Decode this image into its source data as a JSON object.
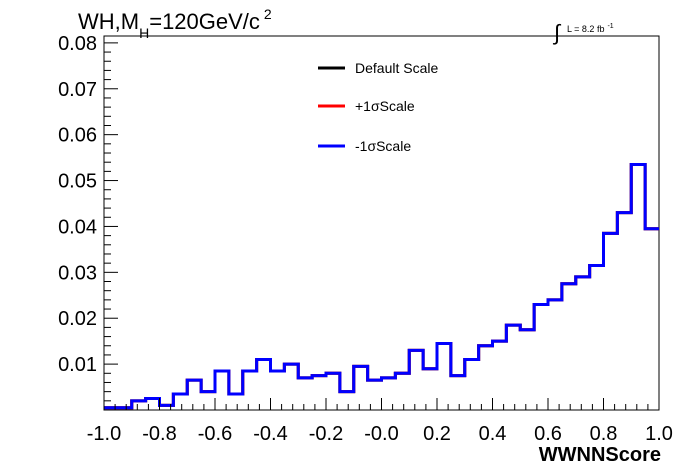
{
  "chart_data": {
    "type": "line",
    "title_parts": {
      "main": "WH,M",
      "sub": "H",
      "rest": "=120GeV/c",
      "sup": "2"
    },
    "lumi_label": {
      "integral": "∫",
      "text": "L = 8.2 fb",
      "sup": "-1"
    },
    "xlabel": "WWNNScore",
    "ylabel": "",
    "xlim": [
      -1.0,
      1.0
    ],
    "ylim": [
      0.0,
      0.0815
    ],
    "x_tick_labels": [
      "-1.0",
      "-0.8",
      "-0.6",
      "-0.4",
      "-0.2",
      "-0.0",
      "0.2",
      "0.4",
      "0.6",
      "0.8",
      "1.0"
    ],
    "x_tick_values": [
      -1.0,
      -0.8,
      -0.6,
      -0.4,
      -0.2,
      0.0,
      0.2,
      0.4,
      0.6,
      0.8,
      1.0
    ],
    "y_tick_labels": [
      "0.01",
      "0.02",
      "0.03",
      "0.04",
      "0.05",
      "0.06",
      "0.07",
      "0.08"
    ],
    "y_tick_values": [
      0.01,
      0.02,
      0.03,
      0.04,
      0.05,
      0.06,
      0.07,
      0.08
    ],
    "bin_edges": [
      -1.0,
      -0.95,
      -0.9,
      -0.85,
      -0.8,
      -0.75,
      -0.7,
      -0.65,
      -0.6,
      -0.55,
      -0.5,
      -0.45,
      -0.4,
      -0.35,
      -0.3,
      -0.25,
      -0.2,
      -0.15,
      -0.1,
      -0.05,
      0.0,
      0.05,
      0.1,
      0.15,
      0.2,
      0.25,
      0.3,
      0.35,
      0.4,
      0.45,
      0.5,
      0.55,
      0.6,
      0.65,
      0.7,
      0.75,
      0.8,
      0.85,
      0.9,
      0.95,
      1.0
    ],
    "series": [
      {
        "name": "Default Scale",
        "color": "#000000",
        "values": [
          0.0005,
          0.0005,
          0.002,
          0.0025,
          0.001,
          0.0035,
          0.0065,
          0.004,
          0.0085,
          0.0035,
          0.0085,
          0.011,
          0.0085,
          0.01,
          0.007,
          0.0075,
          0.008,
          0.004,
          0.0095,
          0.0065,
          0.007,
          0.008,
          0.013,
          0.009,
          0.0145,
          0.0075,
          0.011,
          0.014,
          0.015,
          0.0185,
          0.0175,
          0.023,
          0.024,
          0.0275,
          0.029,
          0.0315,
          0.0385,
          0.043,
          0.0535,
          0.0395
        ]
      },
      {
        "name": "+1σScale",
        "color": "#ff0000",
        "values": [
          0.0005,
          0.0005,
          0.002,
          0.0025,
          0.001,
          0.0035,
          0.0065,
          0.004,
          0.0085,
          0.0035,
          0.0085,
          0.011,
          0.0085,
          0.01,
          0.007,
          0.0075,
          0.008,
          0.004,
          0.0095,
          0.0065,
          0.007,
          0.008,
          0.013,
          0.009,
          0.0145,
          0.0075,
          0.011,
          0.014,
          0.015,
          0.0185,
          0.0175,
          0.023,
          0.024,
          0.0275,
          0.029,
          0.0315,
          0.0385,
          0.043,
          0.0535,
          0.0395
        ]
      },
      {
        "name": "-1σScale",
        "color": "#0000ff",
        "values": [
          0.0005,
          0.0005,
          0.002,
          0.0025,
          0.001,
          0.0035,
          0.0065,
          0.004,
          0.0085,
          0.0035,
          0.0085,
          0.011,
          0.0085,
          0.01,
          0.007,
          0.0075,
          0.008,
          0.004,
          0.0095,
          0.0065,
          0.007,
          0.008,
          0.013,
          0.009,
          0.0145,
          0.0075,
          0.011,
          0.014,
          0.015,
          0.0185,
          0.0175,
          0.023,
          0.024,
          0.0275,
          0.029,
          0.0315,
          0.0385,
          0.043,
          0.0535,
          0.0395
        ]
      }
    ],
    "legend_position": "top-center",
    "grid": false
  }
}
